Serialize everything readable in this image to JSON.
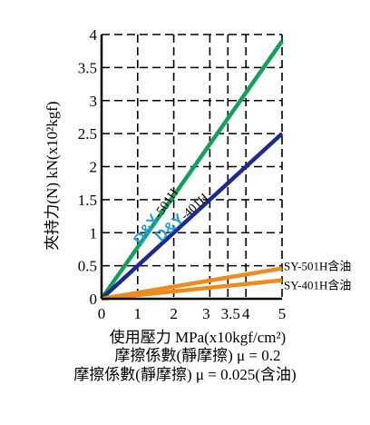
{
  "chart_data": {
    "type": "line",
    "xlabel": "使用壓力 MPa(x10kgf/cm²)",
    "ylabel": "夾持力(N) kN(x10²kgf)",
    "xlim": [
      0,
      5
    ],
    "ylim": [
      0,
      4
    ],
    "x_ticks": [
      0,
      1,
      2,
      3,
      3.5,
      4,
      5
    ],
    "x_tick_labels": [
      "0",
      "1",
      "2",
      "3",
      "3.5",
      "4",
      "5"
    ],
    "y_ticks": [
      0,
      0.5,
      1,
      1.5,
      2,
      2.5,
      3,
      3.5,
      4
    ],
    "y_tick_labels": [
      "0",
      "0.5",
      "1",
      "1.5",
      "2",
      "2.5",
      "3",
      "3.5",
      "4"
    ],
    "grid": true,
    "series": [
      {
        "name": "D&Y-501H",
        "brand": "D&Y",
        "model": "-501H",
        "x": [
          0,
          5
        ],
        "y": [
          0,
          3.9
        ],
        "color": "#13a05a"
      },
      {
        "name": "D&Y-401H",
        "brand": "D&Y",
        "model": "-401H",
        "x": [
          0,
          5
        ],
        "y": [
          0,
          2.5
        ],
        "color": "#1f2a8f"
      },
      {
        "name": "SY-501H含油",
        "x": [
          0,
          5
        ],
        "y": [
          0,
          0.46
        ],
        "color": "#f08a1c"
      },
      {
        "name": "SY-401H含油",
        "x": [
          0,
          5
        ],
        "y": [
          0,
          0.28
        ],
        "color": "#f08a1c"
      }
    ],
    "notes": [
      "摩擦係數(靜摩擦) μ = 0.2",
      "摩擦係數(靜摩擦) μ = 0.025(含油)"
    ]
  }
}
